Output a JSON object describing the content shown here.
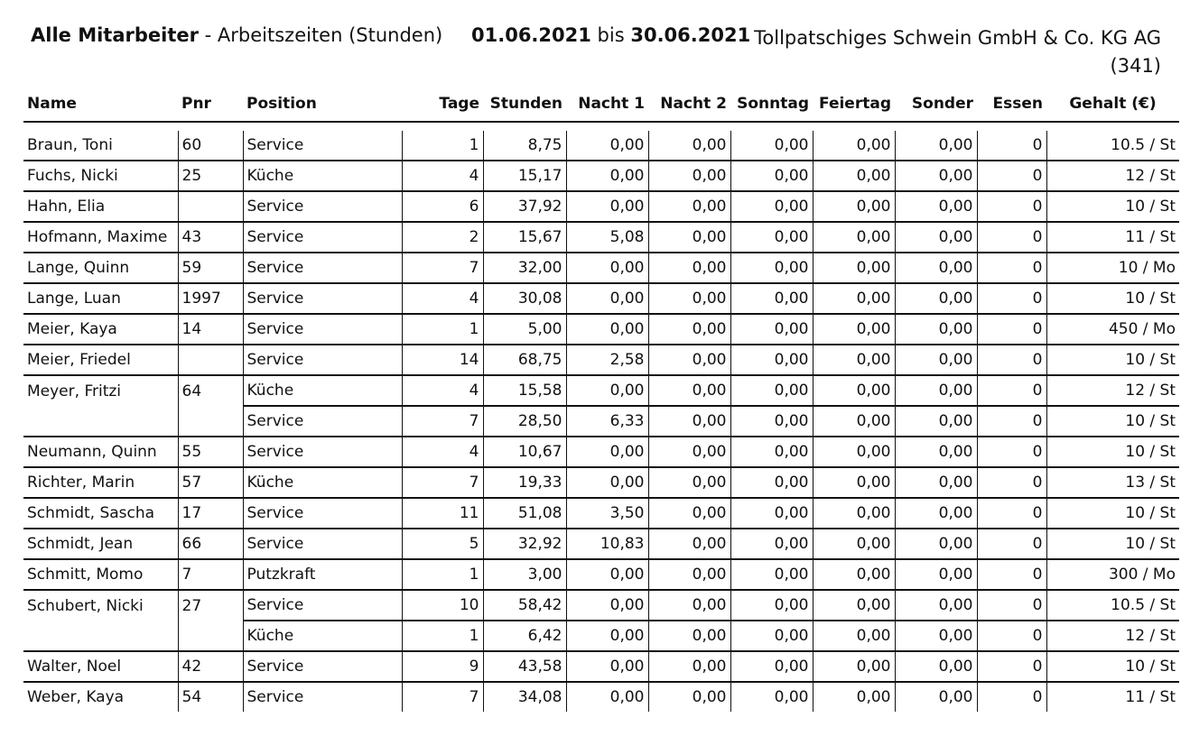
{
  "header": {
    "title_bold": "Alle Mitarbeiter",
    "title_rest": " - Arbeitszeiten (Stunden)",
    "date_from": "01.06.2021",
    "date_sep": "bis",
    "date_to": "30.06.2021",
    "company": "Tollpatschiges Schwein GmbH & Co. KG AG",
    "company_id": "(341)"
  },
  "columns": [
    "Name",
    "Pnr",
    "Position",
    "Tage",
    "Stunden",
    "Nacht 1",
    "Nacht 2",
    "Sonntag",
    "Feiertag",
    "Sonder",
    "Essen",
    "Gehalt (€)"
  ],
  "rows": [
    {
      "name": "Braun, Toni",
      "pnr": "60",
      "position": "Service",
      "tage": "1",
      "stunden": "8,75",
      "nacht1": "0,00",
      "nacht2": "0,00",
      "sonntag": "0,00",
      "feiertag": "0,00",
      "sonder": "0,00",
      "essen": "0",
      "gehalt": "10.5 / St"
    },
    {
      "name": "Fuchs, Nicki",
      "pnr": "25",
      "position": "Küche",
      "tage": "4",
      "stunden": "15,17",
      "nacht1": "0,00",
      "nacht2": "0,00",
      "sonntag": "0,00",
      "feiertag": "0,00",
      "sonder": "0,00",
      "essen": "0",
      "gehalt": "12 / St"
    },
    {
      "name": "Hahn, Elia",
      "pnr": "",
      "position": "Service",
      "tage": "6",
      "stunden": "37,92",
      "nacht1": "0,00",
      "nacht2": "0,00",
      "sonntag": "0,00",
      "feiertag": "0,00",
      "sonder": "0,00",
      "essen": "0",
      "gehalt": "10 / St"
    },
    {
      "name": "Hofmann, Maxime",
      "pnr": "43",
      "position": "Service",
      "tage": "2",
      "stunden": "15,67",
      "nacht1": "5,08",
      "nacht2": "0,00",
      "sonntag": "0,00",
      "feiertag": "0,00",
      "sonder": "0,00",
      "essen": "0",
      "gehalt": "11 / St"
    },
    {
      "name": "Lange, Quinn",
      "pnr": "59",
      "position": "Service",
      "tage": "7",
      "stunden": "32,00",
      "nacht1": "0,00",
      "nacht2": "0,00",
      "sonntag": "0,00",
      "feiertag": "0,00",
      "sonder": "0,00",
      "essen": "0",
      "gehalt": "10 / Mo"
    },
    {
      "name": "Lange, Luan",
      "pnr": "1997",
      "position": "Service",
      "tage": "4",
      "stunden": "30,08",
      "nacht1": "0,00",
      "nacht2": "0,00",
      "sonntag": "0,00",
      "feiertag": "0,00",
      "sonder": "0,00",
      "essen": "0",
      "gehalt": "10 / St"
    },
    {
      "name": "Meier, Kaya",
      "pnr": "14",
      "position": "Service",
      "tage": "1",
      "stunden": "5,00",
      "nacht1": "0,00",
      "nacht2": "0,00",
      "sonntag": "0,00",
      "feiertag": "0,00",
      "sonder": "0,00",
      "essen": "0",
      "gehalt": "450 / Mo"
    },
    {
      "name": "Meier, Friedel",
      "pnr": "",
      "position": "Service",
      "tage": "14",
      "stunden": "68,75",
      "nacht1": "2,58",
      "nacht2": "0,00",
      "sonntag": "0,00",
      "feiertag": "0,00",
      "sonder": "0,00",
      "essen": "0",
      "gehalt": "10 / St"
    },
    {
      "name": "Meyer, Fritzi",
      "pnr": "64",
      "position": "Küche",
      "tage": "4",
      "stunden": "15,58",
      "nacht1": "0,00",
      "nacht2": "0,00",
      "sonntag": "0,00",
      "feiertag": "0,00",
      "sonder": "0,00",
      "essen": "0",
      "gehalt": "12 / St"
    },
    {
      "name": "",
      "pnr": "",
      "position": "Service",
      "tage": "7",
      "stunden": "28,50",
      "nacht1": "6,33",
      "nacht2": "0,00",
      "sonntag": "0,00",
      "feiertag": "0,00",
      "sonder": "0,00",
      "essen": "0",
      "gehalt": "10 / St"
    },
    {
      "name": "Neumann, Quinn",
      "pnr": "55",
      "position": "Service",
      "tage": "4",
      "stunden": "10,67",
      "nacht1": "0,00",
      "nacht2": "0,00",
      "sonntag": "0,00",
      "feiertag": "0,00",
      "sonder": "0,00",
      "essen": "0",
      "gehalt": "10 / St"
    },
    {
      "name": "Richter, Marin",
      "pnr": "57",
      "position": "Küche",
      "tage": "7",
      "stunden": "19,33",
      "nacht1": "0,00",
      "nacht2": "0,00",
      "sonntag": "0,00",
      "feiertag": "0,00",
      "sonder": "0,00",
      "essen": "0",
      "gehalt": "13 / St"
    },
    {
      "name": "Schmidt, Sascha",
      "pnr": "17",
      "position": "Service",
      "tage": "11",
      "stunden": "51,08",
      "nacht1": "3,50",
      "nacht2": "0,00",
      "sonntag": "0,00",
      "feiertag": "0,00",
      "sonder": "0,00",
      "essen": "0",
      "gehalt": "10 / St"
    },
    {
      "name": "Schmidt, Jean",
      "pnr": "66",
      "position": "Service",
      "tage": "5",
      "stunden": "32,92",
      "nacht1": "10,83",
      "nacht2": "0,00",
      "sonntag": "0,00",
      "feiertag": "0,00",
      "sonder": "0,00",
      "essen": "0",
      "gehalt": "10 / St"
    },
    {
      "name": "Schmitt, Momo",
      "pnr": "7",
      "position": "Putzkraft",
      "tage": "1",
      "stunden": "3,00",
      "nacht1": "0,00",
      "nacht2": "0,00",
      "sonntag": "0,00",
      "feiertag": "0,00",
      "sonder": "0,00",
      "essen": "0",
      "gehalt": "300 / Mo"
    },
    {
      "name": "Schubert, Nicki",
      "pnr": "27",
      "position": "Service",
      "tage": "10",
      "stunden": "58,42",
      "nacht1": "0,00",
      "nacht2": "0,00",
      "sonntag": "0,00",
      "feiertag": "0,00",
      "sonder": "0,00",
      "essen": "0",
      "gehalt": "10.5 / St"
    },
    {
      "name": "",
      "pnr": "",
      "position": "Küche",
      "tage": "1",
      "stunden": "6,42",
      "nacht1": "0,00",
      "nacht2": "0,00",
      "sonntag": "0,00",
      "feiertag": "0,00",
      "sonder": "0,00",
      "essen": "0",
      "gehalt": "12 / St"
    },
    {
      "name": "Walter, Noel",
      "pnr": "42",
      "position": "Service",
      "tage": "9",
      "stunden": "43,58",
      "nacht1": "0,00",
      "nacht2": "0,00",
      "sonntag": "0,00",
      "feiertag": "0,00",
      "sonder": "0,00",
      "essen": "0",
      "gehalt": "10 / St"
    },
    {
      "name": "Weber, Kaya",
      "pnr": "54",
      "position": "Service",
      "tage": "7",
      "stunden": "34,08",
      "nacht1": "0,00",
      "nacht2": "0,00",
      "sonntag": "0,00",
      "feiertag": "0,00",
      "sonder": "0,00",
      "essen": "0",
      "gehalt": "11 / St"
    }
  ]
}
